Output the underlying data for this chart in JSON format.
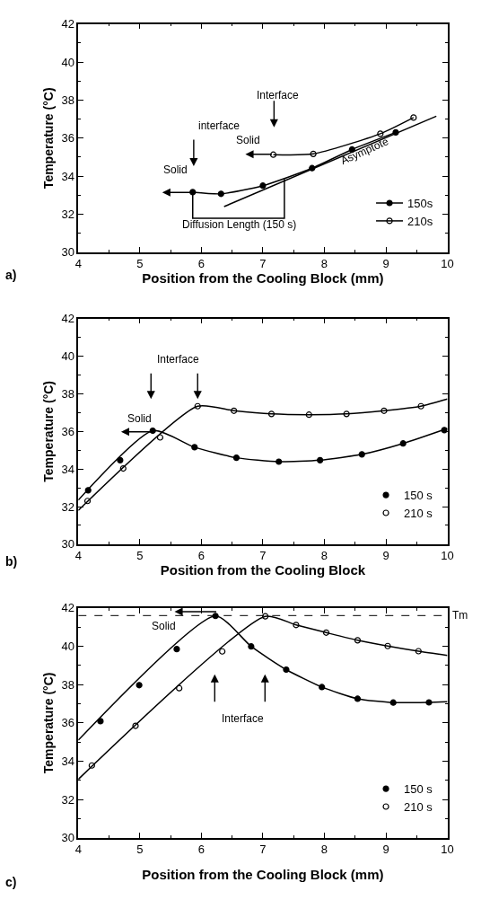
{
  "chart_data": [
    {
      "type": "line",
      "xlabel": "Position from the Cooling Block (mm)",
      "ylabel": "Temperature (°C)",
      "xlim": [
        4,
        10
      ],
      "ylim": [
        30,
        42
      ],
      "xticks": [
        4,
        5,
        6,
        7,
        8,
        9,
        10
      ],
      "yticks": [
        30,
        32,
        34,
        36,
        38,
        40,
        42
      ],
      "legend": "bottom right",
      "series": [
        {
          "name": "150s",
          "color": "#000000",
          "marker": "circle",
          "x": [
            5.86,
            6.32,
            7.0,
            7.8,
            8.45,
            9.16
          ],
          "values": [
            33.16,
            33.07,
            33.5,
            34.42,
            35.4,
            36.3
          ]
        },
        {
          "name": "210s",
          "color": "#000000",
          "marker": "circle-open",
          "x": [
            7.17,
            7.82,
            8.91,
            9.45
          ],
          "values": [
            35.13,
            35.17,
            36.23,
            37.08
          ]
        },
        {
          "color": "#000000",
          "marker": "none",
          "x": [
            6.37,
            9.82
          ],
          "values": [
            32.4,
            37.15
          ]
        },
        {
          "color": "#000000",
          "marker": "none",
          "x": [
            5.86,
            5.86,
            7.35,
            7.35
          ],
          "values": [
            33.16,
            31.78,
            31.78,
            33.85
          ]
        }
      ],
      "annotations": [
        "a)",
        "interface",
        "Interface",
        "Solid",
        "Solid",
        "Asymptote",
        "Diffusion Length (150 s)"
      ]
    },
    {
      "type": "line",
      "xlabel": "Position from the Cooling Block",
      "ylabel": "Temperature (°C)",
      "xlim": [
        4,
        10
      ],
      "ylim": [
        30,
        42
      ],
      "xticks": [
        4,
        5,
        6,
        7,
        8,
        9,
        10
      ],
      "yticks": [
        30,
        32,
        34,
        36,
        38,
        40,
        42
      ],
      "legend": "bottom right",
      "series": [
        {
          "color": "#000000",
          "marker": "none",
          "x": [
            4,
            5.21,
            5.89,
            6.57,
            7.26,
            7.93,
            8.61,
            9.28,
            10
          ],
          "values": [
            32.35,
            36.04,
            35.16,
            34.6,
            34.39,
            34.47,
            34.78,
            35.36,
            36.16
          ]
        },
        {
          "color": "#000000",
          "marker": "none",
          "x": [
            4,
            5.94,
            6.53,
            7.14,
            7.75,
            8.36,
            8.97,
            9.57,
            10
          ],
          "values": [
            31.8,
            37.34,
            37.1,
            36.93,
            36.89,
            36.93,
            37.1,
            37.34,
            37.72
          ]
        },
        {
          "type": "scatter",
          "name": "150 s",
          "color": "#000000",
          "marker": "circle",
          "x": [
            4.16,
            4.68,
            5.21,
            5.89,
            6.57,
            7.26,
            7.93,
            8.61,
            9.28,
            9.95
          ],
          "values": [
            32.87,
            34.47,
            36.04,
            35.16,
            34.6,
            34.39,
            34.47,
            34.78,
            35.36,
            36.07
          ]
        },
        {
          "type": "scatter",
          "name": "210 s",
          "color": "#000000",
          "marker": "circle-open",
          "x": [
            4.15,
            4.73,
            5.33,
            5.94,
            6.53,
            7.14,
            7.75,
            8.36,
            8.97,
            9.57
          ],
          "values": [
            32.3,
            34.03,
            35.68,
            37.34,
            37.1,
            36.93,
            36.89,
            36.93,
            37.1,
            37.34
          ]
        }
      ],
      "annotations": [
        "b)",
        {
          "text": "Interface",
          "x": 5.94,
          "y": 37.34
        },
        "Solid"
      ]
    },
    {
      "type": "line",
      "xlabel": "Position from the Cooling Block (mm)",
      "ylabel": "Temperature (°C)",
      "xlim": [
        4,
        10
      ],
      "ylim": [
        30,
        42
      ],
      "xticks": [
        4,
        5,
        6,
        7,
        8,
        9,
        10
      ],
      "yticks": [
        30,
        32,
        34,
        36,
        38,
        40,
        42
      ],
      "legend": "bottom right",
      "ref_lines": [
        {
          "axis": "y",
          "value": 41.6,
          "label": "Tm",
          "line_style": "dashed"
        }
      ],
      "series": [
        {
          "color": "#000000",
          "marker": "none",
          "x": [
            4,
            6.23,
            6.81,
            7.38,
            7.96,
            8.54,
            9.12,
            9.7,
            10
          ],
          "values": [
            35.1,
            41.58,
            39.99,
            38.78,
            37.87,
            37.26,
            37.06,
            37.07,
            37.1
          ]
        },
        {
          "color": "#000000",
          "marker": "none",
          "x": [
            4,
            7.04,
            7.54,
            8.03,
            8.54,
            9.03,
            9.53,
            10
          ],
          "values": [
            33.06,
            41.56,
            41.11,
            40.71,
            40.31,
            40.01,
            39.74,
            39.52
          ]
        },
        {
          "type": "scatter",
          "name": "150 s",
          "color": "#000000",
          "marker": "circle",
          "x": [
            4.36,
            4.99,
            5.6,
            6.23,
            6.81,
            7.38,
            7.96,
            8.54,
            9.12,
            9.7
          ],
          "values": [
            36.09,
            37.97,
            39.85,
            41.58,
            39.99,
            38.78,
            37.87,
            37.26,
            37.06,
            37.07
          ]
        },
        {
          "type": "scatter",
          "name": "210 s",
          "color": "#000000",
          "marker": "circle-open",
          "x": [
            4.22,
            4.93,
            5.64,
            6.34,
            7.04,
            7.54,
            8.03,
            8.54,
            9.03,
            9.53
          ],
          "values": [
            33.78,
            35.85,
            37.81,
            39.73,
            41.56,
            41.11,
            40.71,
            40.31,
            40.01,
            39.74
          ]
        }
      ],
      "annotations": [
        "c)",
        "Solid",
        "Interface"
      ]
    }
  ]
}
